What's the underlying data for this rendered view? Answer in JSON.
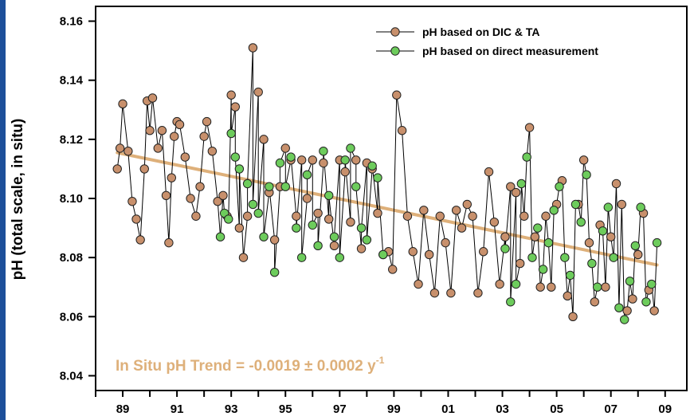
{
  "chart_data": {
    "type": "scatter",
    "ylabel": "pH (total scale, in situ)",
    "xlabel": "",
    "xlim": [
      1988.0,
      2009.8
    ],
    "ylim": [
      8.035,
      8.165
    ],
    "xticks": [
      1989,
      1991,
      1993,
      1995,
      1997,
      1999,
      2001,
      2003,
      2005,
      2007,
      2009
    ],
    "xtick_labels": [
      "89",
      "91",
      "93",
      "95",
      "97",
      "99",
      "01",
      "03",
      "05",
      "07",
      "09"
    ],
    "yticks": [
      8.04,
      8.06,
      8.08,
      8.1,
      8.12,
      8.14,
      8.16
    ],
    "ytick_labels": [
      "8.04",
      "8.06",
      "8.08",
      "8.10",
      "8.12",
      "8.14",
      "8.16"
    ],
    "legend_position": "top-right",
    "annotation": {
      "prefix": "In Situ pH Trend = -0.0019 ± 0.0002 y",
      "superscript": "-1"
    },
    "trend": {
      "x": [
        1988.8,
        2008.7
      ],
      "y": [
        8.1155,
        8.0775
      ]
    },
    "series": [
      {
        "name": "pH based on DIC & TA",
        "color": "#c8906c",
        "x": [
          1988.8,
          1988.9,
          1989.0,
          1989.2,
          1989.35,
          1989.5,
          1989.65,
          1989.8,
          1989.9,
          1990.0,
          1990.1,
          1990.3,
          1990.45,
          1990.6,
          1990.7,
          1990.8,
          1990.9,
          1991.0,
          1991.1,
          1991.3,
          1991.5,
          1991.7,
          1991.85,
          1992.0,
          1992.1,
          1992.3,
          1992.5,
          1992.7,
          1992.85,
          1993.0,
          1993.15,
          1993.3,
          1993.45,
          1993.6,
          1993.8,
          1994.0,
          1994.2,
          1994.4,
          1994.6,
          1994.8,
          1995.0,
          1995.2,
          1995.4,
          1995.6,
          1995.8,
          1996.0,
          1996.2,
          1996.4,
          1996.6,
          1996.8,
          1997.0,
          1997.2,
          1997.4,
          1997.6,
          1997.8,
          1998.0,
          1998.2,
          1998.4,
          1998.6,
          1998.8,
          1998.95,
          1999.1,
          1999.3,
          1999.5,
          1999.7,
          1999.9,
          2000.1,
          2000.3,
          2000.5,
          2000.7,
          2000.9,
          2001.1,
          2001.3,
          2001.5,
          2001.7,
          2001.9,
          2002.1,
          2002.3,
          2002.5,
          2002.7,
          2002.9,
          2003.1,
          2003.3,
          2003.5,
          2003.65,
          2003.8,
          2004.0,
          2004.2,
          2004.4,
          2004.6,
          2004.8,
          2005.0,
          2005.2,
          2005.4,
          2005.6,
          2005.8,
          2006.0,
          2006.2,
          2006.4,
          2006.6,
          2006.8,
          2007.0,
          2007.2,
          2007.4,
          2007.6,
          2007.8,
          2008.0,
          2008.2,
          2008.4,
          2008.6
        ],
        "y": [
          8.11,
          8.117,
          8.132,
          8.116,
          8.099,
          8.093,
          8.086,
          8.11,
          8.133,
          8.123,
          8.134,
          8.117,
          8.123,
          8.101,
          8.085,
          8.107,
          8.121,
          8.126,
          8.125,
          8.114,
          8.1,
          8.094,
          8.104,
          8.121,
          8.126,
          8.116,
          8.099,
          8.101,
          8.094,
          8.135,
          8.131,
          8.09,
          8.08,
          8.094,
          8.151,
          8.136,
          8.12,
          8.102,
          8.086,
          8.104,
          8.117,
          8.113,
          8.094,
          8.113,
          8.1,
          8.113,
          8.095,
          8.112,
          8.093,
          8.084,
          8.113,
          8.109,
          8.092,
          8.113,
          8.083,
          8.112,
          8.11,
          8.095,
          8.081,
          8.082,
          8.076,
          8.135,
          8.123,
          8.094,
          8.082,
          8.071,
          8.096,
          8.081,
          8.068,
          8.094,
          8.085,
          8.068,
          8.096,
          8.09,
          8.098,
          8.094,
          8.068,
          8.082,
          8.109,
          8.092,
          8.071,
          8.087,
          8.104,
          8.102,
          8.078,
          8.094,
          8.124,
          8.087,
          8.07,
          8.094,
          8.07,
          8.098,
          8.106,
          8.067,
          8.06,
          8.098,
          8.113,
          8.085,
          8.065,
          8.091,
          8.07,
          8.087,
          8.105,
          8.098,
          8.062,
          8.066,
          8.081,
          8.095,
          8.069,
          8.062
        ]
      },
      {
        "name": "pH based on direct measurement",
        "color": "#6dcc5c",
        "x": [
          1992.6,
          1992.75,
          1992.9,
          1993.0,
          1993.15,
          1993.3,
          1993.6,
          1993.8,
          1994.0,
          1994.2,
          1994.4,
          1994.6,
          1994.8,
          1995.0,
          1995.2,
          1995.4,
          1995.6,
          1995.8,
          1996.0,
          1996.2,
          1996.4,
          1996.6,
          1996.8,
          1997.0,
          1997.2,
          1997.4,
          1997.6,
          1997.8,
          1998.0,
          1998.2,
          1998.4,
          1998.6,
          2003.1,
          2003.3,
          2003.5,
          2003.7,
          2003.9,
          2004.1,
          2004.3,
          2004.5,
          2004.7,
          2004.9,
          2005.1,
          2005.3,
          2005.5,
          2005.7,
          2005.9,
          2006.1,
          2006.3,
          2006.5,
          2006.7,
          2006.9,
          2007.1,
          2007.3,
          2007.5,
          2007.7,
          2007.9,
          2008.1,
          2008.3,
          2008.5,
          2008.7
        ],
        "y": [
          8.087,
          8.095,
          8.093,
          8.122,
          8.114,
          8.11,
          8.105,
          8.098,
          8.095,
          8.087,
          8.104,
          8.075,
          8.112,
          8.104,
          8.114,
          8.09,
          8.08,
          8.108,
          8.091,
          8.084,
          8.116,
          8.101,
          8.087,
          8.08,
          8.113,
          8.117,
          8.104,
          8.09,
          8.086,
          8.111,
          8.107,
          8.081,
          8.083,
          8.065,
          8.071,
          8.105,
          8.114,
          8.08,
          8.09,
          8.076,
          8.085,
          8.096,
          8.104,
          8.08,
          8.074,
          8.098,
          8.092,
          8.108,
          8.078,
          8.07,
          8.089,
          8.097,
          8.08,
          8.063,
          8.059,
          8.072,
          8.084,
          8.097,
          8.065,
          8.071,
          8.085
        ]
      }
    ]
  }
}
